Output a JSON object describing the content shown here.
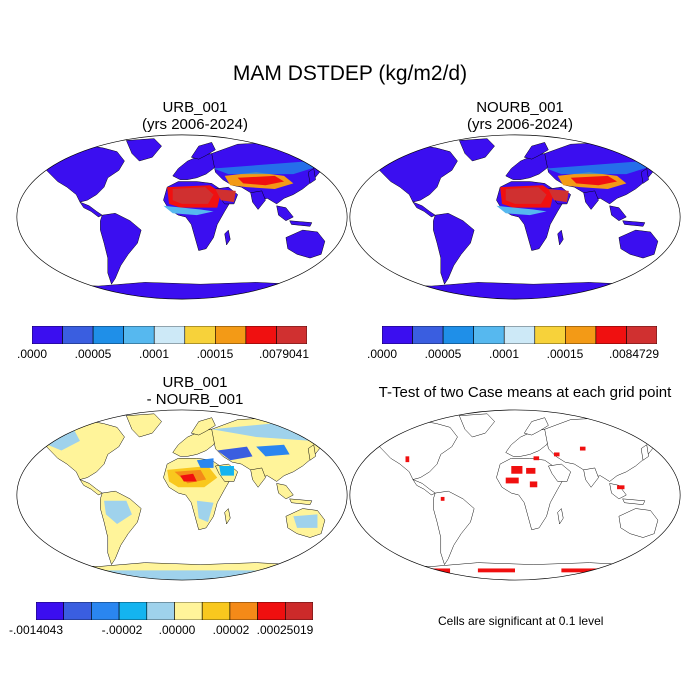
{
  "figure": {
    "title": "MAM DSTDEP (kg/m2/d)"
  },
  "panels": [
    {
      "title_line1": "URB_001",
      "title_line2": "(yrs 2006-2024)",
      "type": "field",
      "colorbar": {
        "colors": [
          "#3b0ef0",
          "#3a5ee0",
          "#1f8fe8",
          "#56b8ef",
          "#cde9f7",
          "#f7d23a",
          "#f39a16",
          "#f01010",
          "#d03030"
        ],
        "labels": [
          ".0000",
          ".00005",
          ".0001",
          ".00015",
          ".0079041"
        ]
      }
    },
    {
      "title_line1": "NOURB_001",
      "title_line2": "(yrs 2006-2024)",
      "type": "field",
      "colorbar": {
        "colors": [
          "#3b0ef0",
          "#3a5ee0",
          "#1f8fe8",
          "#56b8ef",
          "#cde9f7",
          "#f7d23a",
          "#f39a16",
          "#f01010",
          "#d03030"
        ],
        "labels": [
          ".0000",
          ".00005",
          ".0001",
          ".00015",
          ".0084729"
        ]
      }
    },
    {
      "title_line1": "URB_001",
      "title_line2": "- NOURB_001",
      "type": "difference",
      "colorbar": {
        "colors": [
          "#3b0ef0",
          "#3a5ee0",
          "#2a86f0",
          "#14b4f0",
          "#9fd2ec",
          "#fff49a",
          "#f9c81e",
          "#f48a18",
          "#f00f0f",
          "#cc2a2a"
        ],
        "labels": [
          "-.0014043",
          "-.00002",
          ".00000",
          ".00002",
          ".00025019"
        ]
      }
    },
    {
      "title_line1": "T-Test of two Case means at each grid point",
      "title_line2": "",
      "type": "significance",
      "note": "Cells are significant at 0.1 level"
    }
  ]
}
